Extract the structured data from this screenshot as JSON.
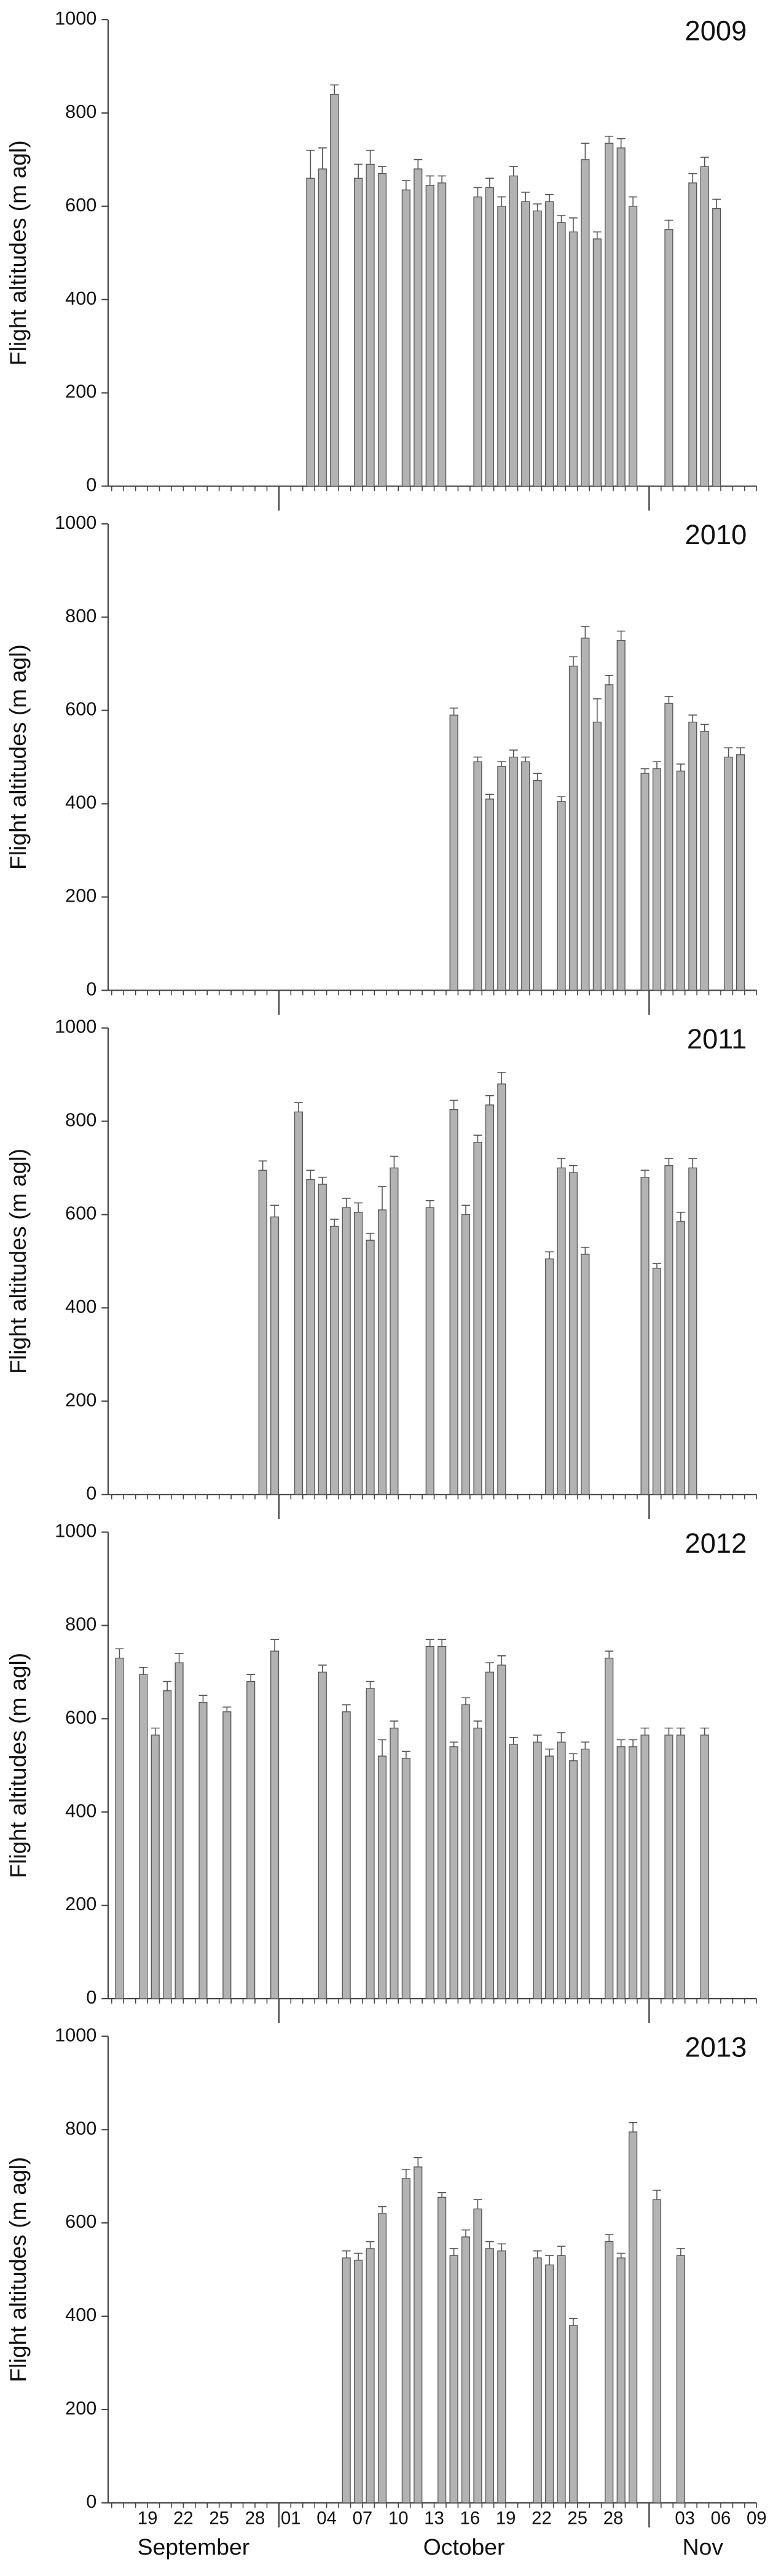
{
  "chart_data": [
    {
      "type": "bar",
      "title": "2009",
      "ylabel": "Flight altitudes (m agl)",
      "color": "#b3b3b3",
      "ylim": [
        0,
        1000
      ],
      "yticks": [
        0,
        200,
        400,
        600,
        800,
        1000
      ],
      "values": [
        null,
        null,
        null,
        null,
        null,
        null,
        null,
        null,
        null,
        null,
        null,
        null,
        null,
        null,
        null,
        null,
        660,
        680,
        840,
        null,
        660,
        690,
        670,
        null,
        635,
        680,
        645,
        650,
        null,
        null,
        620,
        640,
        600,
        665,
        610,
        590,
        610,
        565,
        545,
        700,
        530,
        735,
        725,
        600,
        null,
        null,
        550,
        null,
        650,
        685,
        595,
        null,
        null,
        null,
        null
      ],
      "errors": [
        null,
        null,
        null,
        null,
        null,
        null,
        null,
        null,
        null,
        null,
        null,
        null,
        null,
        null,
        null,
        null,
        60,
        45,
        20,
        null,
        30,
        30,
        15,
        null,
        20,
        20,
        20,
        15,
        null,
        null,
        20,
        20,
        20,
        20,
        20,
        15,
        15,
        15,
        30,
        35,
        15,
        15,
        20,
        20,
        null,
        null,
        20,
        null,
        20,
        20,
        20,
        null,
        null,
        null,
        null
      ]
    },
    {
      "type": "bar",
      "title": "2010",
      "ylabel": "Flight altitudes (m agl)",
      "color": "#b3b3b3",
      "ylim": [
        0,
        1000
      ],
      "yticks": [
        0,
        200,
        400,
        600,
        800,
        1000
      ],
      "values": [
        null,
        null,
        null,
        null,
        null,
        null,
        null,
        null,
        null,
        null,
        null,
        null,
        null,
        null,
        null,
        null,
        null,
        null,
        null,
        null,
        null,
        null,
        null,
        null,
        null,
        null,
        null,
        null,
        590,
        null,
        490,
        410,
        480,
        500,
        490,
        450,
        null,
        405,
        695,
        755,
        575,
        655,
        750,
        null,
        465,
        475,
        615,
        470,
        575,
        555,
        null,
        500,
        505,
        null,
        null
      ],
      "errors": [
        null,
        null,
        null,
        null,
        null,
        null,
        null,
        null,
        null,
        null,
        null,
        null,
        null,
        null,
        null,
        null,
        null,
        null,
        null,
        null,
        null,
        null,
        null,
        null,
        null,
        null,
        null,
        null,
        15,
        null,
        10,
        10,
        10,
        15,
        10,
        15,
        null,
        10,
        20,
        25,
        50,
        20,
        20,
        null,
        10,
        15,
        15,
        15,
        15,
        15,
        null,
        20,
        15,
        null,
        null
      ]
    },
    {
      "type": "bar",
      "title": "2011",
      "ylabel": "Flight altitudes (m agl)",
      "color": "#b3b3b3",
      "ylim": [
        0,
        1000
      ],
      "yticks": [
        0,
        200,
        400,
        600,
        800,
        1000
      ],
      "values": [
        null,
        null,
        null,
        null,
        null,
        null,
        null,
        null,
        null,
        null,
        null,
        null,
        695,
        595,
        null,
        820,
        675,
        665,
        575,
        615,
        605,
        545,
        610,
        700,
        null,
        null,
        615,
        null,
        825,
        600,
        755,
        835,
        880,
        null,
        null,
        null,
        505,
        700,
        690,
        515,
        null,
        null,
        null,
        null,
        680,
        485,
        705,
        585,
        700,
        null,
        null,
        null,
        null,
        null,
        null
      ],
      "errors": [
        null,
        null,
        null,
        null,
        null,
        null,
        null,
        null,
        null,
        null,
        null,
        null,
        20,
        25,
        null,
        20,
        20,
        15,
        15,
        20,
        20,
        15,
        50,
        25,
        null,
        null,
        15,
        null,
        20,
        20,
        15,
        20,
        25,
        null,
        null,
        null,
        15,
        20,
        15,
        15,
        null,
        null,
        null,
        null,
        15,
        10,
        15,
        20,
        20,
        null,
        null,
        null,
        null,
        null,
        null
      ]
    },
    {
      "type": "bar",
      "title": "2012",
      "ylabel": "Flight altitudes (m agl)",
      "color": "#b3b3b3",
      "ylim": [
        0,
        1000
      ],
      "yticks": [
        0,
        200,
        400,
        600,
        800,
        1000
      ],
      "values": [
        730,
        null,
        695,
        565,
        660,
        720,
        null,
        635,
        null,
        615,
        null,
        680,
        null,
        745,
        null,
        null,
        null,
        700,
        null,
        615,
        null,
        665,
        520,
        580,
        515,
        null,
        755,
        755,
        540,
        630,
        580,
        700,
        715,
        545,
        null,
        550,
        520,
        550,
        510,
        535,
        null,
        730,
        540,
        540,
        565,
        null,
        565,
        565,
        null,
        565,
        null,
        null,
        null,
        null,
        null
      ],
      "errors": [
        20,
        null,
        15,
        15,
        20,
        20,
        null,
        15,
        null,
        10,
        null,
        15,
        null,
        25,
        null,
        null,
        null,
        15,
        null,
        15,
        null,
        15,
        35,
        15,
        15,
        null,
        15,
        15,
        10,
        15,
        15,
        20,
        20,
        15,
        null,
        15,
        15,
        20,
        15,
        15,
        null,
        15,
        15,
        15,
        15,
        null,
        15,
        15,
        null,
        15,
        null,
        null,
        null,
        null,
        null
      ]
    },
    {
      "type": "bar",
      "title": "2013",
      "ylabel": "Flight altitudes (m agl)",
      "color": "#b3b3b3",
      "ylim": [
        0,
        1000
      ],
      "yticks": [
        0,
        200,
        400,
        600,
        800,
        1000
      ],
      "values": [
        null,
        null,
        null,
        null,
        null,
        null,
        null,
        null,
        null,
        null,
        null,
        null,
        null,
        null,
        null,
        null,
        null,
        null,
        null,
        525,
        520,
        545,
        620,
        null,
        695,
        720,
        null,
        655,
        530,
        570,
        630,
        545,
        540,
        null,
        null,
        525,
        510,
        530,
        380,
        null,
        null,
        560,
        525,
        795,
        null,
        650,
        null,
        530,
        null,
        null,
        null,
        null,
        null,
        null,
        null
      ],
      "errors": [
        null,
        null,
        null,
        null,
        null,
        null,
        null,
        null,
        null,
        null,
        null,
        null,
        null,
        null,
        null,
        null,
        null,
        null,
        null,
        15,
        15,
        15,
        15,
        null,
        20,
        20,
        null,
        10,
        15,
        15,
        20,
        15,
        15,
        null,
        null,
        15,
        20,
        20,
        15,
        null,
        null,
        15,
        10,
        20,
        null,
        20,
        null,
        15,
        null,
        null,
        null,
        null,
        null,
        null,
        null
      ],
      "categories": [
        null,
        null,
        null,
        "19",
        null,
        null,
        "22",
        null,
        null,
        "25",
        null,
        null,
        "28",
        null,
        null,
        "01",
        null,
        null,
        "04",
        null,
        null,
        "07",
        null,
        null,
        "10",
        null,
        null,
        "13",
        null,
        null,
        "16",
        null,
        null,
        "19",
        null,
        null,
        "22",
        null,
        null,
        "25",
        null,
        null,
        "28",
        null,
        null,
        null,
        null,
        null,
        "03",
        null,
        null,
        "06",
        null,
        null,
        "09"
      ],
      "months": [
        "September",
        "October",
        "Nov"
      ]
    }
  ]
}
